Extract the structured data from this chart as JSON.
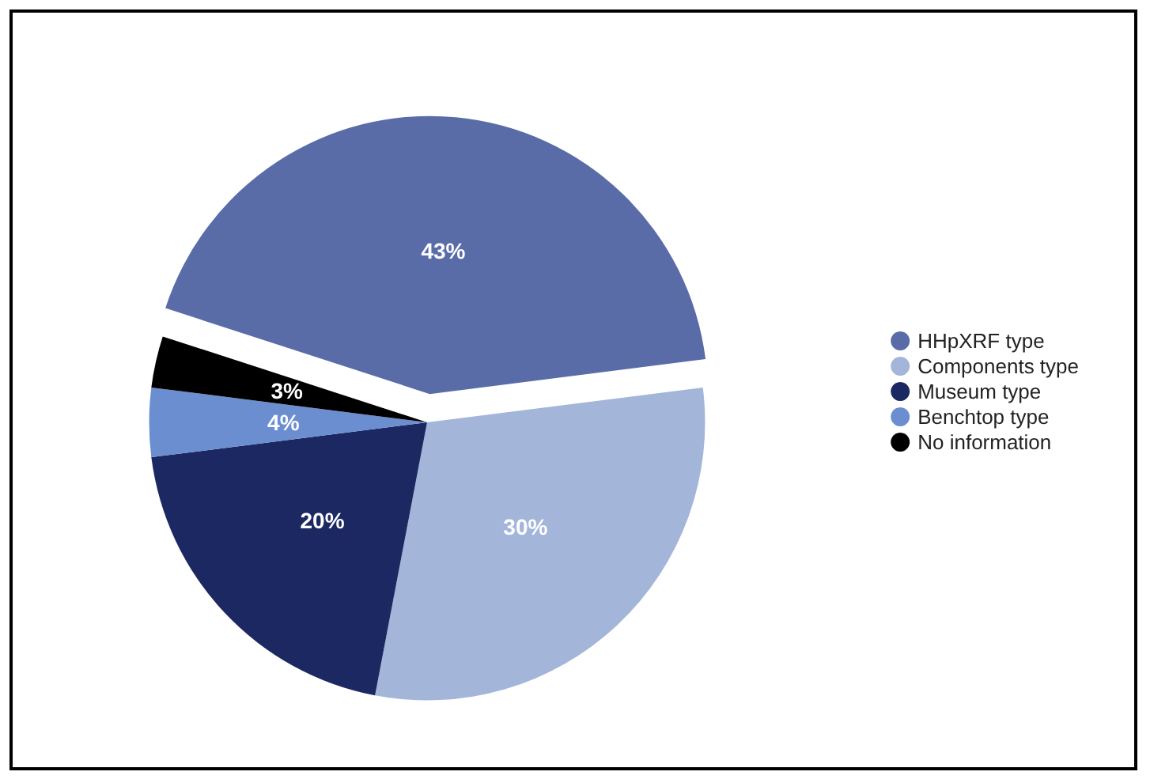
{
  "chart_data": {
    "type": "pie",
    "categories": [
      "HHpXRF type",
      "Components type",
      "Museum type",
      "Benchtop type",
      "No information"
    ],
    "values": [
      43,
      30,
      20,
      4,
      3
    ],
    "colors": [
      "#5a6ca8",
      "#a3b6da",
      "#1c2862",
      "#6b8ed0",
      "#000000"
    ],
    "value_labels": [
      "43%",
      "30%",
      "20%",
      "4%",
      "3%"
    ],
    "legend": "right"
  }
}
